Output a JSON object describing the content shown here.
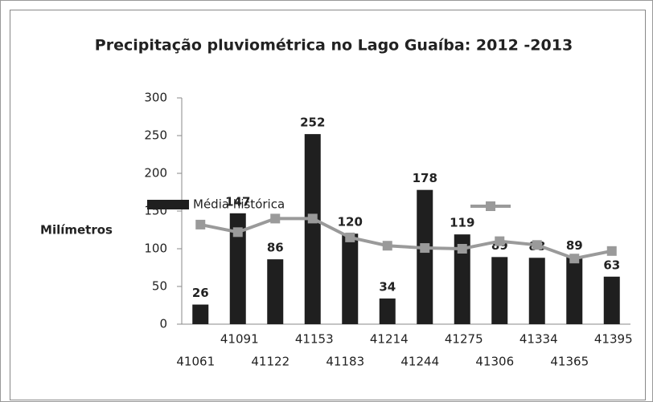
{
  "chart_data": {
    "type": "bar",
    "title": "Precipitação pluviométrica no Lago Guaíba: 2012 -2013",
    "y_label": "Milímetros",
    "categories": [
      "41061",
      "41091",
      "41122",
      "41153",
      "41183",
      "41214",
      "41244",
      "41275",
      "41306",
      "41334",
      "41365",
      "41395"
    ],
    "series": [
      {
        "name": "Média histórica",
        "type": "bar",
        "color": "#1f1f1f",
        "values": [
          26,
          147,
          86,
          252,
          120,
          34,
          178,
          119,
          89,
          88,
          89,
          63
        ],
        "data_labels": true
      },
      {
        "type": "line",
        "color": "#9a9a9a",
        "values": [
          132,
          122,
          140,
          140,
          115,
          104,
          101,
          100,
          110,
          105,
          87,
          97
        ]
      }
    ],
    "ylim": [
      0,
      300
    ],
    "yticks": [
      0,
      50,
      100,
      150,
      200,
      250,
      300
    ],
    "grid": false
  }
}
